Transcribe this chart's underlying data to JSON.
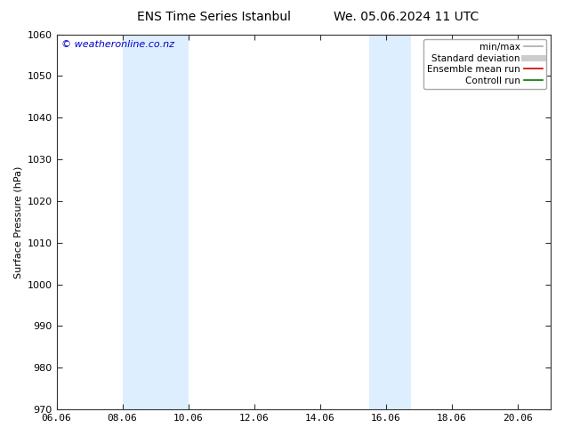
{
  "title_left": "ENS Time Series Istanbul",
  "title_right": "We. 05.06.2024 11 UTC",
  "ylabel": "Surface Pressure (hPa)",
  "ylim": [
    970,
    1060
  ],
  "yticks": [
    970,
    980,
    990,
    1000,
    1010,
    1020,
    1030,
    1040,
    1050,
    1060
  ],
  "xtick_labels": [
    "06.06",
    "08.06",
    "10.06",
    "12.06",
    "14.06",
    "16.06",
    "18.06",
    "20.06"
  ],
  "xtick_positions": [
    0,
    2,
    4,
    6,
    8,
    10,
    12,
    14
  ],
  "xlim": [
    0,
    15
  ],
  "shaded_bands": [
    {
      "x_start": 2.0,
      "x_end": 4.0,
      "color": "#ddeeff"
    },
    {
      "x_start": 9.5,
      "x_end": 10.75,
      "color": "#ddeeff"
    }
  ],
  "watermark": "© weatheronline.co.nz",
  "legend_entries": [
    {
      "label": "min/max",
      "color": "#aaaaaa",
      "lw": 1.2,
      "style": "-"
    },
    {
      "label": "Standard deviation",
      "color": "#cccccc",
      "lw": 5,
      "style": "-"
    },
    {
      "label": "Ensemble mean run",
      "color": "#cc0000",
      "lw": 1.2,
      "style": "-"
    },
    {
      "label": "Controll run",
      "color": "#007700",
      "lw": 1.2,
      "style": "-"
    }
  ],
  "background_color": "#ffffff",
  "plot_bg_color": "#ffffff",
  "title_fontsize": 10,
  "axis_label_fontsize": 8,
  "tick_fontsize": 8,
  "watermark_fontsize": 8,
  "legend_fontsize": 7.5
}
